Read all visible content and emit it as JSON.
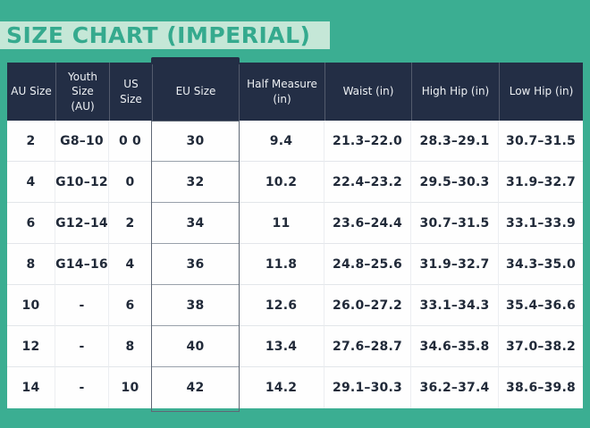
{
  "page": {
    "background_color": "#3bae92",
    "title_band_color": "#c5e7d7",
    "title_text_color": "#35aa8e",
    "header_bg_color": "#232e45",
    "cell_bg_color": "#ffffff",
    "highlight_border_color": "#5f6875"
  },
  "chart_data": {
    "type": "table",
    "title": "SIZE CHART (IMPERIAL)",
    "columns": [
      "AU Size",
      "Youth Size (AU)",
      "US Size",
      "EU Size",
      "Half Measure (in)",
      "Waist (in)",
      "High Hip (in)",
      "Low Hip (in)"
    ],
    "highlighted_column": "EU Size",
    "rows": [
      [
        "2",
        "G8–10",
        "0 0",
        "30",
        "9.4",
        "21.3–22.0",
        "28.3–29.1",
        "30.7–31.5"
      ],
      [
        "4",
        "G10–12",
        "0",
        "32",
        "10.2",
        "22.4–23.2",
        "29.5–30.3",
        "31.9–32.7"
      ],
      [
        "6",
        "G12–14",
        "2",
        "34",
        "11",
        "23.6–24.4",
        "30.7–31.5",
        "33.1–33.9"
      ],
      [
        "8",
        "G14–16",
        "4",
        "36",
        "11.8",
        "24.8–25.6",
        "31.9–32.7",
        "34.3–35.0"
      ],
      [
        "10",
        "-",
        "6",
        "38",
        "12.6",
        "26.0–27.2",
        "33.1–34.3",
        "35.4–36.6"
      ],
      [
        "12",
        "-",
        "8",
        "40",
        "13.4",
        "27.6–28.7",
        "34.6–35.8",
        "37.0–38.2"
      ],
      [
        "14",
        "-",
        "10",
        "42",
        "14.2",
        "29.1–30.3",
        "36.2–37.4",
        "38.6–39.8"
      ]
    ]
  }
}
